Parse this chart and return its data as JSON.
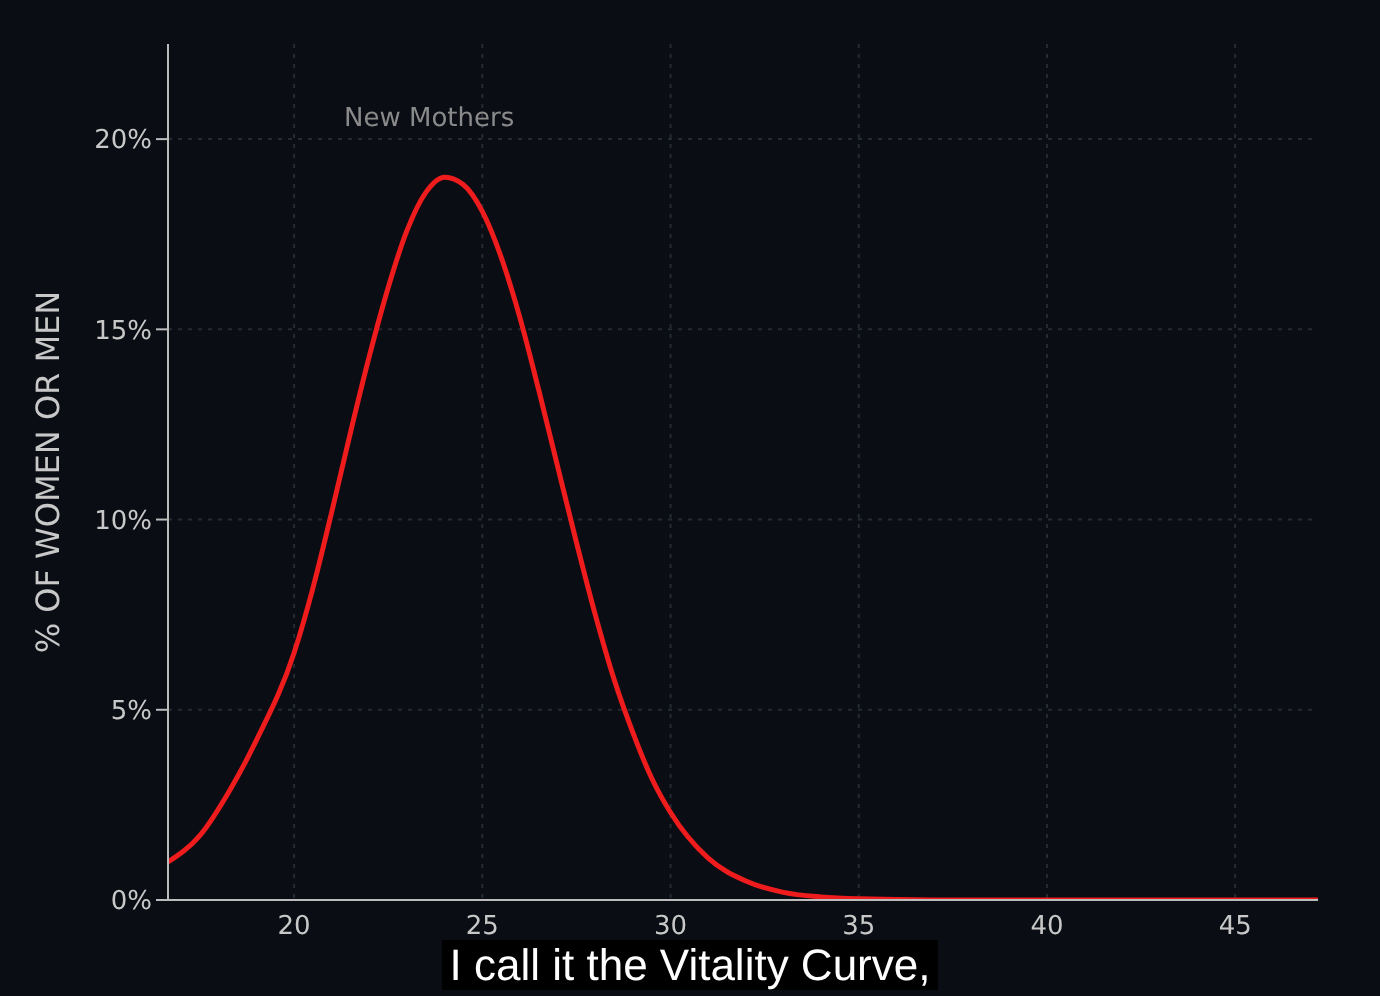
{
  "chart_data": {
    "type": "line",
    "ylabel": "% OF WOMEN OR MEN",
    "x": [
      16.65,
      17.5,
      18.3,
      19,
      20,
      20.5,
      21,
      21.5,
      22,
      22.5,
      23,
      23.5,
      24,
      24.5,
      25,
      25.5,
      26,
      26.5,
      27,
      27.5,
      28,
      28.5,
      29,
      29.5,
      30,
      31,
      32,
      33,
      34,
      35,
      37,
      40,
      45,
      47.2
    ],
    "series": [
      {
        "color": "#ee1c1c",
        "values": [
          1.0,
          1.7,
          2.9,
          4.2,
          6.5,
          8.2,
          10.2,
          12.3,
          14.3,
          16.1,
          17.6,
          18.6,
          19.0,
          18.8,
          18.1,
          16.9,
          15.3,
          13.4,
          11.4,
          9.4,
          7.5,
          5.8,
          4.4,
          3.2,
          2.3,
          1.1,
          0.5,
          0.2,
          0.08,
          0.03,
          0,
          0,
          0,
          0
        ]
      }
    ],
    "xlim": [
      16.65,
      47.2
    ],
    "xticks": [
      20,
      25,
      30,
      35,
      40,
      45
    ],
    "ylim": [
      0,
      22.5
    ],
    "yticks": [
      {
        "value": 0,
        "label": "0%"
      },
      {
        "value": 5,
        "label": "5%"
      },
      {
        "value": 10,
        "label": "10%"
      },
      {
        "value": 15,
        "label": "15%"
      },
      {
        "value": 20,
        "label": "20%"
      }
    ],
    "grid": true,
    "marker": "none",
    "line_style": "solid",
    "annotations": [
      "New Mothers",
      "I call it the Vitality Curve,"
    ]
  }
}
